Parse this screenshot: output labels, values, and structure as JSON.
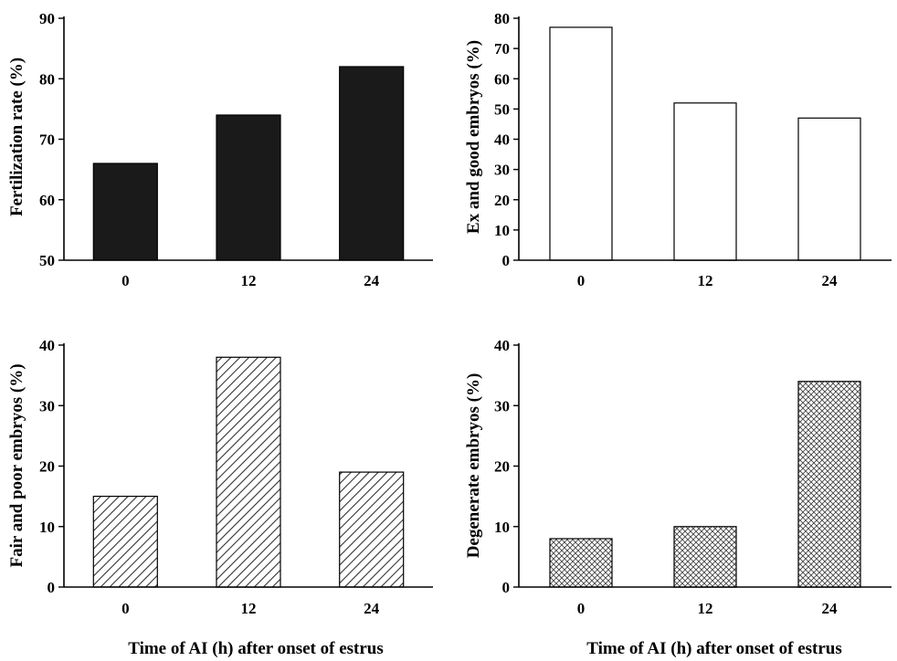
{
  "chart_data": [
    {
      "type": "bar",
      "categories": [
        "0",
        "12",
        "24"
      ],
      "values": [
        66,
        74,
        82
      ],
      "ylabel": "Fertilization rate (%)",
      "xlabel": "",
      "ylim": [
        50,
        90
      ],
      "yticks": [
        50,
        60,
        70,
        80,
        90
      ],
      "fill": "solid",
      "color": "#1a1a1a"
    },
    {
      "type": "bar",
      "categories": [
        "0",
        "12",
        "24"
      ],
      "values": [
        77,
        52,
        47
      ],
      "ylabel": "Ex and good embryos (%)",
      "xlabel": "",
      "ylim": [
        0,
        80
      ],
      "yticks": [
        0,
        10,
        20,
        30,
        40,
        50,
        60,
        70,
        80
      ],
      "fill": "white",
      "color": "#000000"
    },
    {
      "type": "bar",
      "categories": [
        "0",
        "12",
        "24"
      ],
      "values": [
        15,
        38,
        19
      ],
      "ylabel": "Fair and poor embryos (%)",
      "xlabel": "Time of AI (h) after onset of estrus",
      "ylim": [
        0,
        40
      ],
      "yticks": [
        0,
        10,
        20,
        30,
        40
      ],
      "fill": "diagonal-hatch",
      "color": "#000000"
    },
    {
      "type": "bar",
      "categories": [
        "0",
        "12",
        "24"
      ],
      "values": [
        8,
        10,
        34
      ],
      "ylabel": "Degenerate embryos (%)",
      "xlabel": "Time of AI (h) after onset of estrus",
      "ylim": [
        0,
        40
      ],
      "yticks": [
        0,
        10,
        20,
        30,
        40
      ],
      "fill": "cross-hatch",
      "color": "#000000"
    }
  ]
}
